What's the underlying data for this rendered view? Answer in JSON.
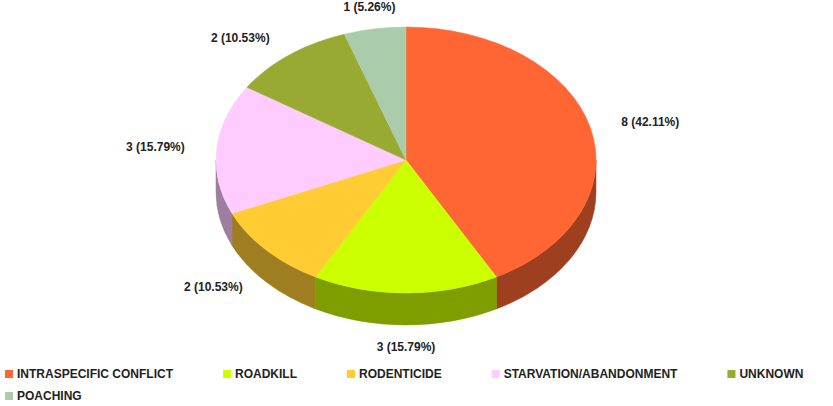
{
  "chart_data": {
    "type": "pie",
    "categories": [
      "INTRASPECIFIC CONFLICT",
      "ROADKILL",
      "RODENTICIDE",
      "STARVATION/ABANDONMENT",
      "UNKNOWN",
      "POACHING"
    ],
    "values": [
      8,
      3,
      2,
      3,
      2,
      1
    ],
    "value_labels": [
      "8 (42.11%)",
      "3 (15.79%)",
      "2 (10.53%)",
      "3 (15.79%)",
      "2 (10.53%)",
      "1 (5.26%)"
    ],
    "colors": [
      "#ff6633",
      "#ccff00",
      "#ffcc33",
      "#ffccff",
      "#99aa33",
      "#aaccaa"
    ],
    "data_labels": true,
    "legend": "bottom"
  }
}
